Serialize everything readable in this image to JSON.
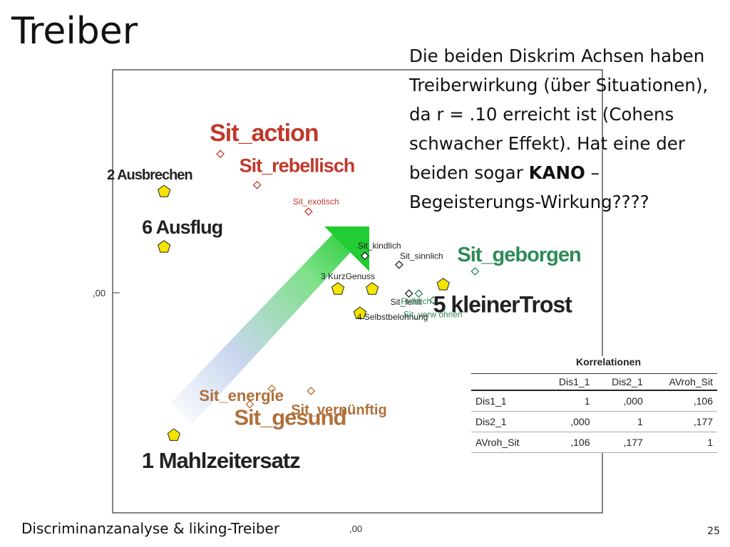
{
  "slide": {
    "title": "Treiber",
    "footer": "Discriminanzanalyse & liking-Treiber",
    "page_number": "25",
    "note": {
      "line1": "Die beiden Diskrim Achsen haben Treiberwirkung (über Situationen), da r = .10 erreicht ist (Cohens schwacher Effekt). Hat eine der beiden sogar",
      "bold": "KANO",
      "line2": " – Begeisterungs-Wirkung????"
    }
  },
  "chart_data": {
    "type": "scatter",
    "title": "",
    "xlabel": "",
    "ylabel": "",
    "xlim": [
      -1.0,
      1.0
    ],
    "ylim": [
      -1.0,
      1.0
    ],
    "tick_labels": {
      "x_zero": ",00",
      "y_zero": ",00"
    },
    "series": [
      {
        "name": "",
        "marker": "diamond",
        "points": [
          {
            "label": "Sit_action",
            "x": -0.56,
            "y": 0.62,
            "color": "#c0392b"
          },
          {
            "label": "Sit_rebellisch",
            "x": -0.41,
            "y": 0.48,
            "color": "#c0392b"
          },
          {
            "label": "Sit_exotisch",
            "x": -0.2,
            "y": 0.36,
            "color": "#c0392b"
          },
          {
            "label": "Sit_kindlich",
            "x": 0.03,
            "y": 0.16,
            "color": "#222222"
          },
          {
            "label": "Sit_sinnlich",
            "x": 0.17,
            "y": 0.12,
            "color": "#222222"
          },
          {
            "label": "Sit_geborgen",
            "x": 0.48,
            "y": 0.09,
            "color": "#2e8b57"
          },
          {
            "label": "Sit_fehlt",
            "x": 0.21,
            "y": -0.01,
            "color": "#222222"
          },
          {
            "label": "Fröhlich",
            "x": 0.25,
            "y": -0.01,
            "color": "#2e8b57"
          },
          {
            "label": "Sit_verw öhnen",
            "x": 0.31,
            "y": -0.04,
            "color": "#2e8b57"
          },
          {
            "label": "Sit_energie",
            "x": -0.35,
            "y": -0.44,
            "color": "#b0703a"
          },
          {
            "label": "Sit_vernünftig",
            "x": -0.19,
            "y": -0.45,
            "color": "#b0703a"
          },
          {
            "label": "Sit_gesund",
            "x": -0.44,
            "y": -0.51,
            "color": "#b0703a"
          }
        ]
      },
      {
        "name": "",
        "marker": "pentagon",
        "points": [
          {
            "label": "2 Ausbrechen",
            "x": -0.79,
            "y": 0.45
          },
          {
            "label": "6 Ausflug",
            "x": -0.79,
            "y": 0.2
          },
          {
            "label": "3 KurzGenuss",
            "x": -0.08,
            "y": 0.01
          },
          {
            "label": "",
            "x": 0.06,
            "y": 0.01
          },
          {
            "label": "4 Selbstbelohnung",
            "x": 0.01,
            "y": -0.1
          },
          {
            "label": "5 kleinerTrost",
            "x": 0.35,
            "y": 0.03
          },
          {
            "label": "1 Mahlzeitersatz",
            "x": -0.75,
            "y": -0.65
          }
        ]
      }
    ],
    "correlations": {
      "title": "Korrelationen",
      "columns": [
        "Dis1_1",
        "Dis2_1",
        "AVroh_Sit"
      ],
      "rows": [
        {
          "name": "Dis1_1",
          "values": [
            "1",
            ",000",
            ",106"
          ]
        },
        {
          "name": "Dis2_1",
          "values": [
            ",000",
            "1",
            ",177"
          ]
        },
        {
          "name": "AVroh_Sit",
          "values": [
            ",106",
            ",177",
            "1"
          ]
        }
      ]
    }
  }
}
